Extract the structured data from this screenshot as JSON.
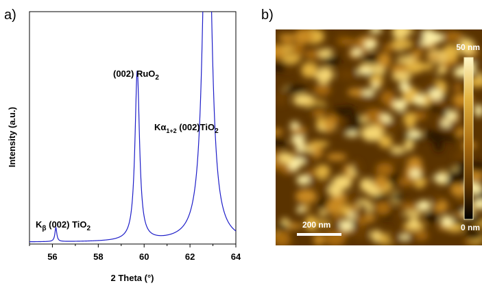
{
  "chart_data": [
    {
      "type": "line",
      "panel_label": "a)",
      "xlabel": "2 Theta (°)",
      "ylabel": "Intensity (a.u.)",
      "xlim": [
        55,
        64
      ],
      "ylim": [
        0,
        100
      ],
      "x_ticks": [
        56,
        58,
        60,
        62,
        64
      ],
      "y_ticks_shown": false,
      "grid": false,
      "line_color": "#1c1cc8",
      "series": [
        {
          "peaks": [
            {
              "center": 56.15,
              "height": 6,
              "width": 0.05
            },
            {
              "center": 59.7,
              "height": 73,
              "width": 0.12
            },
            {
              "center": 62.75,
              "height": 190,
              "width": 0.2
            }
          ],
          "baseline": 0.8
        }
      ],
      "annotations": [
        {
          "main": "K",
          "sub": "β",
          "rest": " (002) TiO",
          "rest_sub": "2"
        },
        {
          "main": "(002) RuO",
          "sub": "2"
        },
        {
          "main": "Kα",
          "sub": "1+2",
          "rest": " (002)TiO",
          "rest_sub": "2"
        }
      ]
    },
    {
      "type": "heatmap",
      "panel_label": "b)",
      "description_colors": [
        "#000000",
        "#5a3300",
        "#a86a10",
        "#e3b340",
        "#fff7c8"
      ],
      "colorbar": {
        "max_label": "50 nm",
        "min_label": "0 nm"
      },
      "scale_bar": {
        "label": "200 nm"
      }
    }
  ]
}
